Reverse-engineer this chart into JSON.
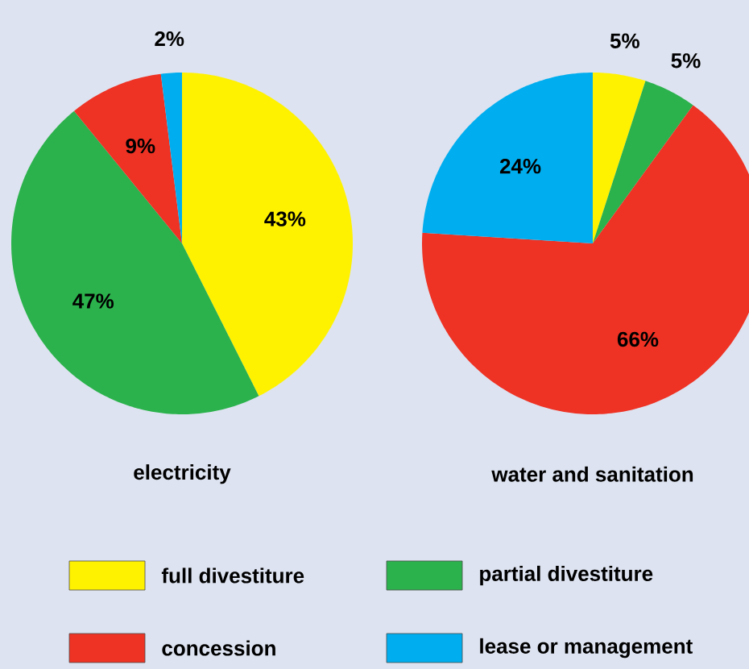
{
  "chart_data": [
    {
      "type": "pie",
      "title": "electricity",
      "categories": [
        "full divestiture",
        "partial divestiture",
        "concession",
        "lease or management"
      ],
      "values": [
        43,
        47,
        9,
        2
      ],
      "colors": [
        "#fff200",
        "#2bb24c",
        "#ee3224",
        "#00aeef"
      ],
      "value_labels": [
        "43%",
        "47%",
        "9%",
        "2%"
      ],
      "legend": "bottom"
    },
    {
      "type": "pie",
      "title": "water and sanitation",
      "values": [
        5,
        5,
        66,
        24
      ],
      "colors": [
        "#fff200",
        "#2bb24c",
        "#ee3224",
        "#00aeef"
      ],
      "value_labels": [
        "5%",
        "5%",
        "66%",
        "24%"
      ]
    }
  ]
}
